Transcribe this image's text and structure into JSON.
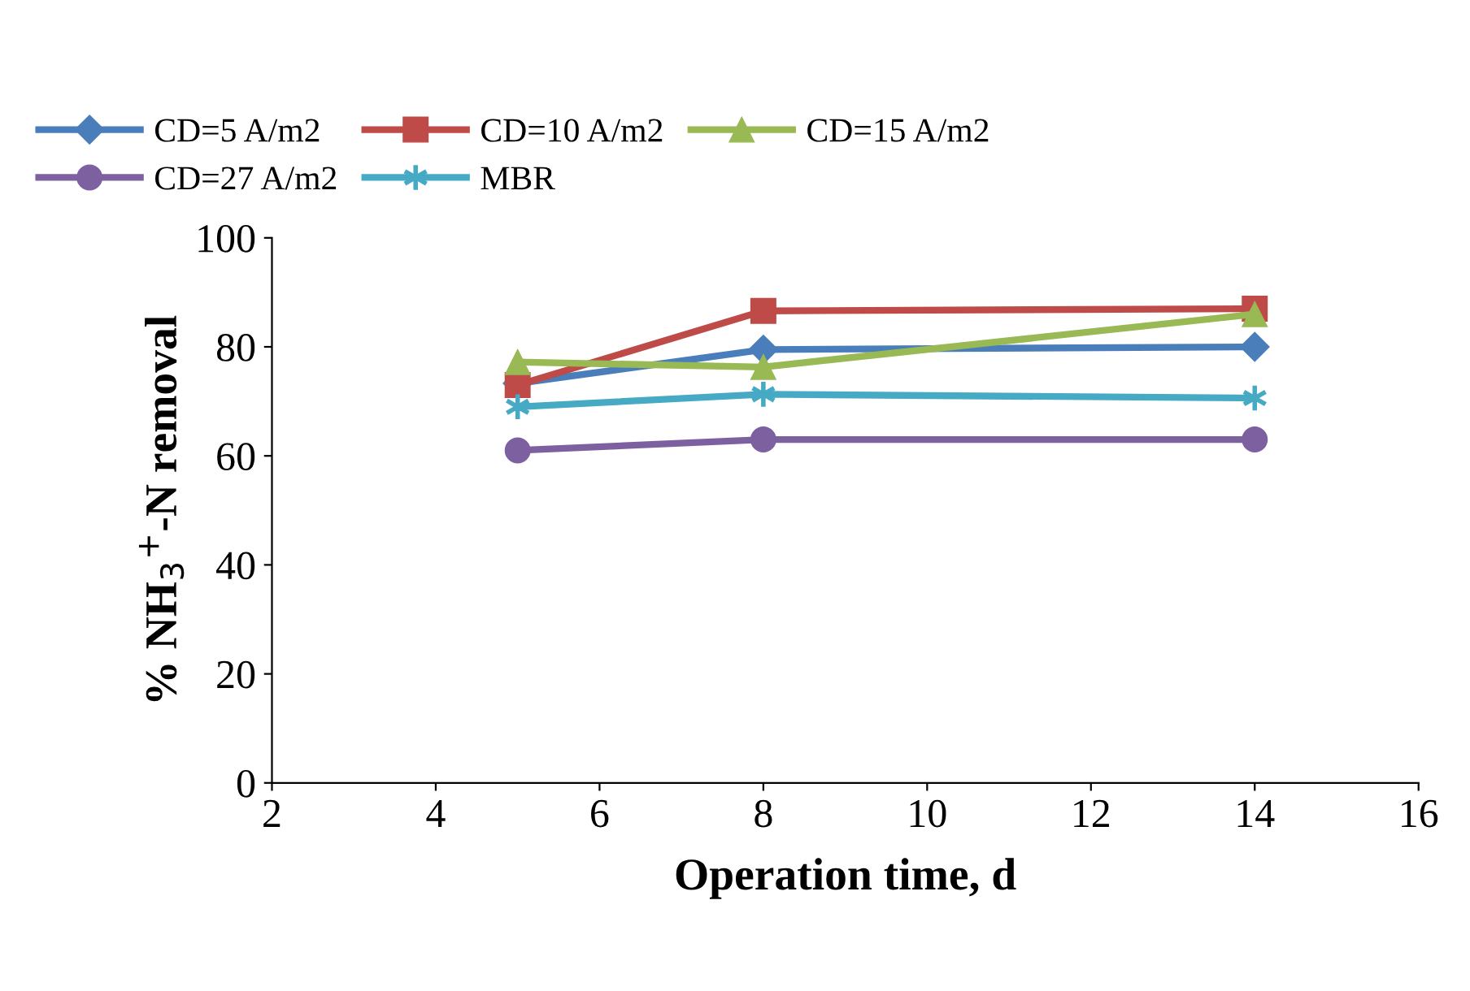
{
  "chart_data": {
    "type": "line",
    "xlabel": "Operation time, d",
    "ylabel": "% NH$_{3}$$^{+}$-N removal",
    "x": [
      5,
      8,
      14
    ],
    "xlim": [
      2,
      16
    ],
    "xticks": [
      2,
      4,
      6,
      8,
      10,
      12,
      14,
      16
    ],
    "ylim": [
      0,
      100
    ],
    "yticks": [
      0,
      20,
      40,
      60,
      80,
      100
    ],
    "grid": false,
    "legend": "top",
    "line_style": "solid",
    "series": [
      {
        "name": "CD=5 A/m2",
        "color": "#4a7ebb",
        "marker": "diamond",
        "values": [
          73.3,
          79.5,
          80
        ]
      },
      {
        "name": "CD=10 A/m2",
        "color": "#be4b48",
        "marker": "square",
        "values": [
          73,
          86.6,
          87
        ]
      },
      {
        "name": "CD=15 A/m2",
        "color": "#98b954",
        "marker": "triangle",
        "values": [
          77.2,
          76.3,
          86
        ]
      },
      {
        "name": "CD=27 A/m2",
        "color": "#7d60a0",
        "marker": "circle",
        "values": [
          61,
          63,
          63
        ]
      },
      {
        "name": "MBR",
        "color": "#46aac5",
        "marker": "cross",
        "values": [
          69,
          71.3,
          70.6
        ]
      }
    ]
  }
}
